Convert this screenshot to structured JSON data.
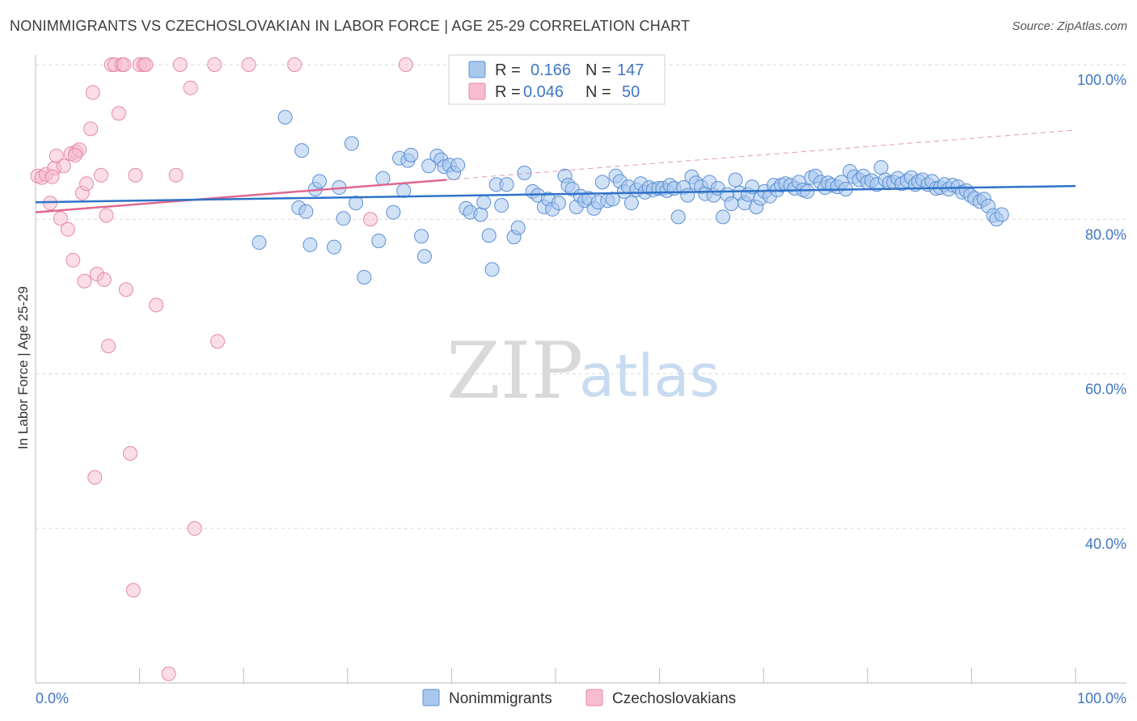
{
  "title": "NONIMMIGRANTS VS CZECHOSLOVAKIAN IN LABOR FORCE | AGE 25-29 CORRELATION CHART",
  "source": "Source: ZipAtlas.com",
  "watermark": {
    "zip": "ZIP",
    "atlas": "atlas"
  },
  "colors": {
    "blue_fill": "#a9c8ee",
    "blue_stroke": "#5b8fd4",
    "blue_line": "#2f72c8",
    "pink_fill": "#f7bccd",
    "pink_stroke": "#e58aa6",
    "pink_line": "#e0678f",
    "grid": "#d8d8d8",
    "label": "#3f76c4"
  },
  "legend": {
    "r_label": "R =",
    "n_label": "N =",
    "entries": [
      {
        "r": "0.166",
        "n": "147"
      },
      {
        "r": "0.046",
        "n": "50"
      }
    ]
  },
  "chart_data": {
    "type": "scatter",
    "xlabel": "",
    "ylabel": "In Labor Force | Age 25-29",
    "xlim": [
      0,
      100
    ],
    "ylim": [
      20,
      100
    ],
    "x_tick_labels": [
      "0.0%",
      "100.0%"
    ],
    "y_ticks": [
      40,
      60,
      80,
      100
    ],
    "y_tick_labels": [
      "40.0%",
      "60.0%",
      "80.0%",
      "100.0%"
    ],
    "grid": "horizontal dashed",
    "legend_placement": "top-center",
    "series": [
      {
        "name": "Nonimmigrants",
        "r": 0.166,
        "n": 147,
        "trend": {
          "x": [
            0,
            100
          ],
          "y": [
            82.2,
            84.3
          ]
        },
        "points": [
          [
            21.5,
            77.0
          ],
          [
            24.0,
            93.2
          ],
          [
            25.3,
            81.5
          ],
          [
            25.6,
            88.9
          ],
          [
            26.0,
            81.0
          ],
          [
            26.4,
            76.7
          ],
          [
            26.9,
            83.9
          ],
          [
            27.3,
            84.9
          ],
          [
            28.7,
            76.4
          ],
          [
            29.2,
            84.1
          ],
          [
            29.6,
            80.1
          ],
          [
            30.4,
            89.8
          ],
          [
            30.8,
            82.1
          ],
          [
            31.6,
            72.5
          ],
          [
            33.0,
            77.2
          ],
          [
            33.4,
            85.3
          ],
          [
            34.4,
            80.9
          ],
          [
            35.0,
            87.9
          ],
          [
            35.4,
            83.7
          ],
          [
            35.8,
            87.6
          ],
          [
            36.1,
            88.3
          ],
          [
            37.1,
            77.8
          ],
          [
            37.4,
            75.2
          ],
          [
            37.8,
            86.9
          ],
          [
            38.6,
            88.2
          ],
          [
            39.0,
            87.7
          ],
          [
            39.3,
            86.8
          ],
          [
            39.8,
            87.0
          ],
          [
            40.2,
            86.0
          ],
          [
            40.6,
            87.0
          ],
          [
            41.4,
            81.4
          ],
          [
            41.8,
            80.9
          ],
          [
            42.8,
            80.6
          ],
          [
            43.1,
            82.2
          ],
          [
            43.6,
            77.9
          ],
          [
            43.9,
            73.5
          ],
          [
            44.3,
            84.5
          ],
          [
            44.8,
            81.8
          ],
          [
            45.3,
            84.5
          ],
          [
            46.0,
            77.7
          ],
          [
            46.4,
            78.9
          ],
          [
            47.0,
            86.0
          ],
          [
            47.8,
            83.6
          ],
          [
            48.3,
            83.1
          ],
          [
            48.9,
            81.6
          ],
          [
            49.3,
            82.6
          ],
          [
            49.7,
            81.3
          ],
          [
            50.3,
            82.1
          ],
          [
            50.9,
            85.6
          ],
          [
            51.2,
            84.4
          ],
          [
            51.6,
            83.9
          ],
          [
            52.0,
            81.6
          ],
          [
            52.4,
            83.0
          ],
          [
            52.8,
            82.4
          ],
          [
            53.2,
            82.7
          ],
          [
            53.7,
            81.4
          ],
          [
            54.1,
            82.2
          ],
          [
            54.5,
            84.8
          ],
          [
            55.0,
            82.4
          ],
          [
            55.5,
            82.6
          ],
          [
            55.8,
            85.6
          ],
          [
            56.2,
            84.9
          ],
          [
            56.6,
            83.6
          ],
          [
            57.0,
            84.2
          ],
          [
            57.3,
            82.1
          ],
          [
            57.8,
            83.8
          ],
          [
            58.2,
            84.6
          ],
          [
            58.6,
            83.5
          ],
          [
            59.0,
            84.1
          ],
          [
            59.4,
            83.8
          ],
          [
            59.9,
            84.0
          ],
          [
            60.3,
            84.0
          ],
          [
            60.7,
            83.7
          ],
          [
            61.0,
            84.4
          ],
          [
            61.4,
            84.0
          ],
          [
            61.8,
            80.3
          ],
          [
            62.3,
            84.1
          ],
          [
            62.7,
            83.1
          ],
          [
            63.1,
            85.5
          ],
          [
            63.5,
            84.7
          ],
          [
            64.0,
            84.2
          ],
          [
            64.4,
            83.3
          ],
          [
            64.8,
            84.8
          ],
          [
            65.2,
            83.1
          ],
          [
            65.6,
            84.0
          ],
          [
            66.1,
            80.3
          ],
          [
            66.5,
            83.2
          ],
          [
            66.9,
            82.0
          ],
          [
            67.3,
            85.1
          ],
          [
            67.7,
            83.4
          ],
          [
            68.2,
            82.1
          ],
          [
            68.5,
            83.2
          ],
          [
            68.9,
            84.2
          ],
          [
            69.3,
            81.6
          ],
          [
            69.7,
            82.7
          ],
          [
            70.1,
            83.6
          ],
          [
            70.6,
            83.0
          ],
          [
            71.0,
            84.4
          ],
          [
            71.3,
            83.8
          ],
          [
            71.7,
            84.4
          ],
          [
            72.1,
            84.6
          ],
          [
            72.6,
            84.4
          ],
          [
            73.0,
            84.0
          ],
          [
            73.4,
            84.8
          ],
          [
            73.8,
            83.8
          ],
          [
            74.2,
            83.6
          ],
          [
            74.6,
            85.4
          ],
          [
            75.0,
            85.6
          ],
          [
            75.5,
            84.8
          ],
          [
            75.9,
            84.1
          ],
          [
            76.2,
            84.7
          ],
          [
            76.6,
            84.4
          ],
          [
            77.1,
            84.2
          ],
          [
            77.5,
            84.8
          ],
          [
            77.9,
            83.9
          ],
          [
            78.3,
            86.2
          ],
          [
            78.7,
            85.5
          ],
          [
            79.2,
            85.1
          ],
          [
            79.6,
            85.6
          ],
          [
            80.0,
            84.8
          ],
          [
            80.4,
            85.0
          ],
          [
            80.9,
            84.5
          ],
          [
            81.3,
            86.7
          ],
          [
            81.7,
            85.1
          ],
          [
            82.1,
            84.7
          ],
          [
            82.5,
            84.8
          ],
          [
            82.9,
            85.3
          ],
          [
            83.3,
            84.6
          ],
          [
            83.8,
            85.0
          ],
          [
            84.2,
            85.4
          ],
          [
            84.6,
            84.5
          ],
          [
            84.9,
            84.9
          ],
          [
            85.3,
            85.1
          ],
          [
            85.8,
            84.5
          ],
          [
            86.2,
            84.9
          ],
          [
            86.6,
            84.0
          ],
          [
            87.0,
            84.1
          ],
          [
            87.4,
            84.5
          ],
          [
            87.8,
            83.9
          ],
          [
            88.2,
            84.4
          ],
          [
            88.7,
            84.2
          ],
          [
            89.1,
            83.5
          ],
          [
            89.5,
            83.7
          ],
          [
            89.9,
            83.1
          ],
          [
            90.3,
            82.7
          ],
          [
            90.8,
            82.3
          ],
          [
            91.2,
            82.6
          ],
          [
            91.6,
            81.7
          ],
          [
            92.1,
            80.5
          ],
          [
            92.4,
            80.0
          ],
          [
            92.9,
            80.6
          ]
        ]
      },
      {
        "name": "Czechoslovakians",
        "r": 0.046,
        "n": 50,
        "trend": {
          "x": [
            0,
            39.5
          ],
          "y": [
            80.9,
            85.1
          ]
        },
        "points": [
          [
            0.2,
            85.6
          ],
          [
            0.6,
            85.4
          ],
          [
            1.0,
            85.8
          ],
          [
            1.4,
            82.1
          ],
          [
            1.8,
            86.6
          ],
          [
            2.0,
            88.2
          ],
          [
            2.4,
            80.1
          ],
          [
            2.7,
            86.9
          ],
          [
            3.1,
            78.7
          ],
          [
            3.4,
            88.5
          ],
          [
            3.6,
            74.7
          ],
          [
            3.9,
            88.7
          ],
          [
            4.2,
            89.0
          ],
          [
            4.5,
            83.4
          ],
          [
            4.7,
            72.0
          ],
          [
            4.9,
            84.6
          ],
          [
            5.3,
            91.7
          ],
          [
            5.5,
            96.4
          ],
          [
            5.7,
            46.6
          ],
          [
            5.9,
            72.9
          ],
          [
            6.3,
            85.7
          ],
          [
            6.6,
            72.2
          ],
          [
            6.8,
            80.5
          ],
          [
            7.0,
            63.6
          ],
          [
            7.3,
            100.0
          ],
          [
            7.6,
            100.0
          ],
          [
            8.0,
            93.7
          ],
          [
            8.3,
            100.0
          ],
          [
            8.5,
            100.0
          ],
          [
            8.7,
            70.9
          ],
          [
            9.1,
            49.7
          ],
          [
            9.4,
            32.0
          ],
          [
            9.6,
            85.7
          ],
          [
            10.0,
            100.0
          ],
          [
            10.4,
            100.0
          ],
          [
            10.6,
            100.0
          ],
          [
            11.6,
            68.9
          ],
          [
            12.8,
            21.2
          ],
          [
            13.5,
            85.7
          ],
          [
            13.9,
            100.0
          ],
          [
            14.9,
            97.0
          ],
          [
            15.3,
            40.0
          ],
          [
            17.2,
            100.0
          ],
          [
            17.5,
            64.2
          ],
          [
            20.5,
            100.0
          ],
          [
            24.9,
            100.0
          ],
          [
            32.2,
            80.0
          ],
          [
            35.6,
            100.0
          ],
          [
            1.6,
            85.5
          ],
          [
            3.8,
            88.3
          ]
        ]
      }
    ]
  }
}
